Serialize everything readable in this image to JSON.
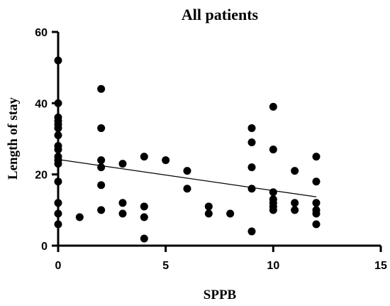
{
  "chart_data": {
    "type": "scatter",
    "title": "All patients",
    "xlabel": "SPPB",
    "ylabel": "Length of stay",
    "xlim": [
      0,
      15
    ],
    "ylim": [
      0,
      60
    ],
    "xticks": [
      0,
      5,
      10,
      15
    ],
    "yticks": [
      0,
      20,
      40,
      60
    ],
    "grid": false,
    "series": [
      {
        "type": "scatter",
        "color": "#000000",
        "points": [
          {
            "x": 0,
            "y": 52
          },
          {
            "x": 0,
            "y": 40
          },
          {
            "x": 0,
            "y": 36
          },
          {
            "x": 0,
            "y": 35
          },
          {
            "x": 0,
            "y": 34
          },
          {
            "x": 0,
            "y": 33
          },
          {
            "x": 0,
            "y": 31
          },
          {
            "x": 0,
            "y": 28
          },
          {
            "x": 0,
            "y": 27
          },
          {
            "x": 0,
            "y": 25
          },
          {
            "x": 0,
            "y": 24
          },
          {
            "x": 0,
            "y": 23
          },
          {
            "x": 0,
            "y": 18
          },
          {
            "x": 0,
            "y": 12
          },
          {
            "x": 0,
            "y": 9
          },
          {
            "x": 0,
            "y": 6
          },
          {
            "x": 1,
            "y": 8
          },
          {
            "x": 2,
            "y": 44
          },
          {
            "x": 2,
            "y": 33
          },
          {
            "x": 2,
            "y": 24
          },
          {
            "x": 2,
            "y": 22
          },
          {
            "x": 2,
            "y": 17
          },
          {
            "x": 2,
            "y": 10
          },
          {
            "x": 3,
            "y": 23
          },
          {
            "x": 3,
            "y": 12
          },
          {
            "x": 3,
            "y": 9
          },
          {
            "x": 4,
            "y": 25
          },
          {
            "x": 4,
            "y": 11
          },
          {
            "x": 4,
            "y": 8
          },
          {
            "x": 4,
            "y": 2
          },
          {
            "x": 5,
            "y": 24
          },
          {
            "x": 6,
            "y": 21
          },
          {
            "x": 6,
            "y": 16
          },
          {
            "x": 7,
            "y": 11
          },
          {
            "x": 7,
            "y": 9
          },
          {
            "x": 8,
            "y": 9
          },
          {
            "x": 9,
            "y": 33
          },
          {
            "x": 9,
            "y": 29
          },
          {
            "x": 9,
            "y": 22
          },
          {
            "x": 9,
            "y": 16
          },
          {
            "x": 9,
            "y": 4
          },
          {
            "x": 10,
            "y": 39
          },
          {
            "x": 10,
            "y": 27
          },
          {
            "x": 10,
            "y": 15
          },
          {
            "x": 10,
            "y": 13
          },
          {
            "x": 10,
            "y": 12
          },
          {
            "x": 10,
            "y": 11
          },
          {
            "x": 10,
            "y": 10
          },
          {
            "x": 11,
            "y": 21
          },
          {
            "x": 11,
            "y": 12
          },
          {
            "x": 11,
            "y": 10
          },
          {
            "x": 12,
            "y": 25
          },
          {
            "x": 12,
            "y": 18
          },
          {
            "x": 12,
            "y": 12
          },
          {
            "x": 12,
            "y": 10
          },
          {
            "x": 12,
            "y": 9
          },
          {
            "x": 12,
            "y": 6
          }
        ]
      },
      {
        "type": "line",
        "color": "#000000",
        "points": [
          {
            "x": 0,
            "y": 24.2
          },
          {
            "x": 12,
            "y": 13.7
          }
        ]
      }
    ]
  }
}
